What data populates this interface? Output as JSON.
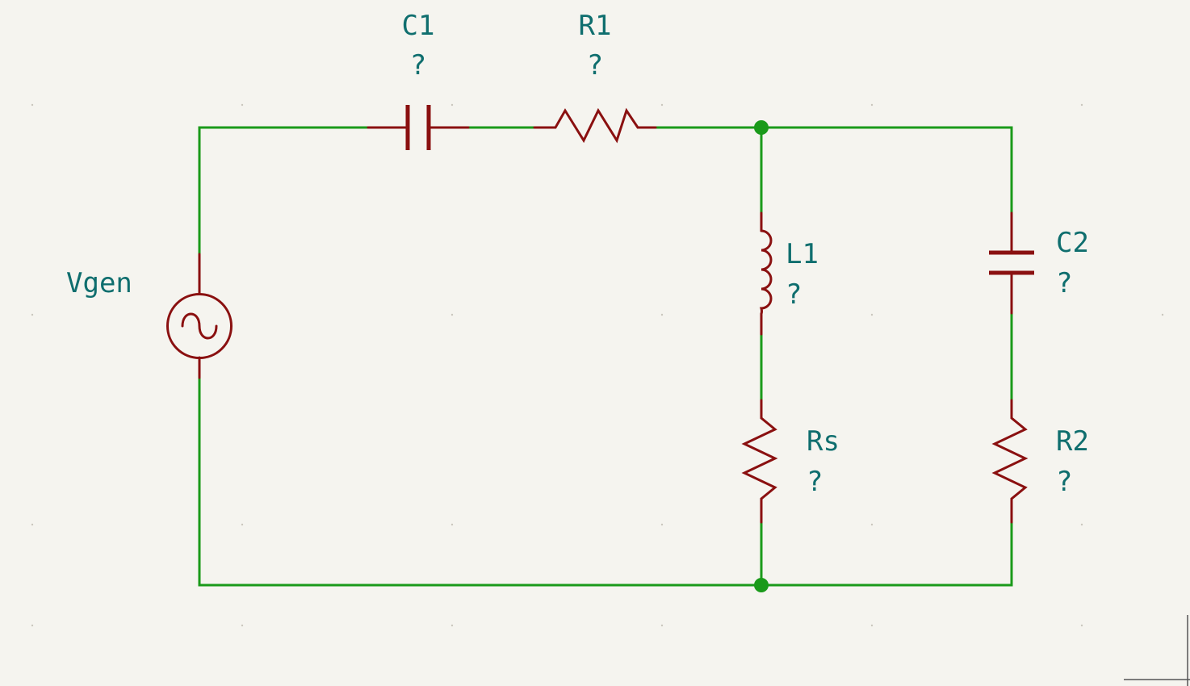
{
  "components": {
    "vgen": {
      "ref": "Vgen"
    },
    "c1": {
      "ref": "C1",
      "value": "?"
    },
    "r1": {
      "ref": "R1",
      "value": "?"
    },
    "l1": {
      "ref": "L1",
      "value": "?"
    },
    "c2": {
      "ref": "C2",
      "value": "?"
    },
    "rs": {
      "ref": "Rs",
      "value": "?"
    },
    "r2": {
      "ref": "R2",
      "value": "?"
    }
  },
  "colors": {
    "background": "#f5f4ef",
    "wire": "#1a9a1a",
    "component": "#8a1010",
    "label": "#0f6e6e"
  }
}
